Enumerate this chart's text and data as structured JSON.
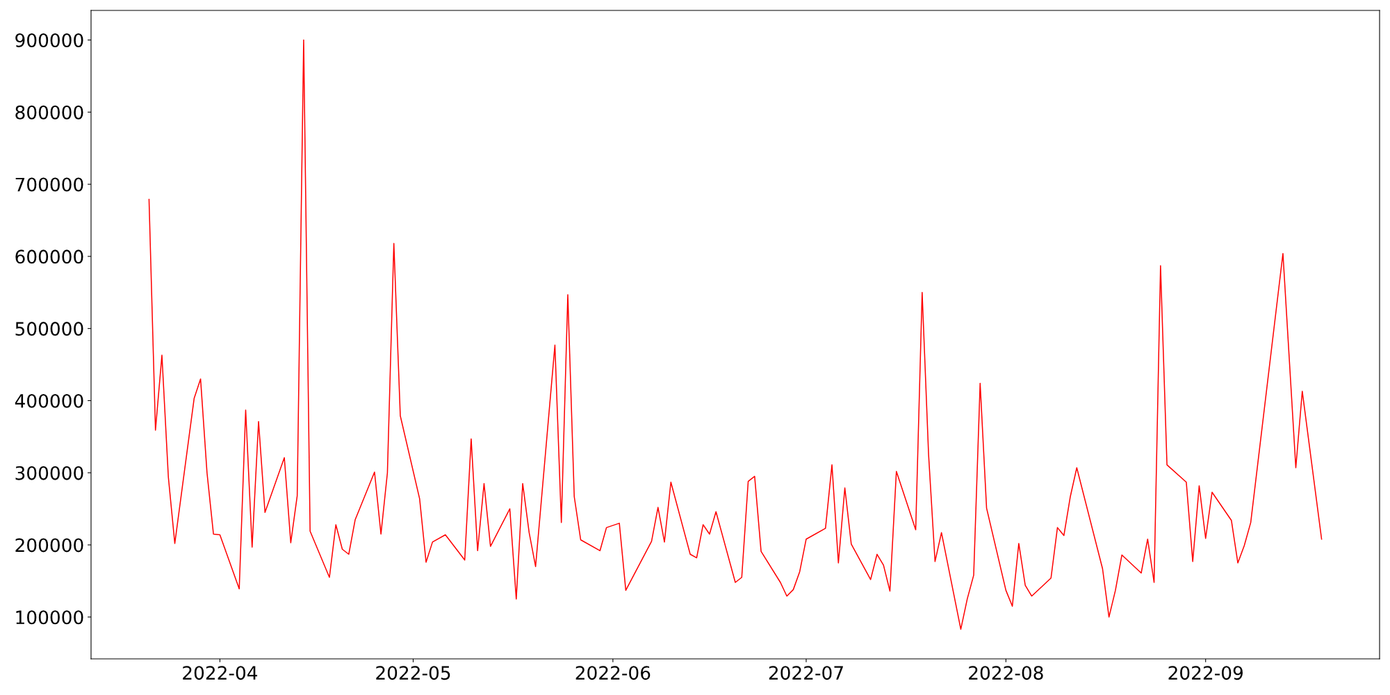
{
  "chart_data": {
    "type": "line",
    "x": [
      "2022-03-21",
      "2022-03-22",
      "2022-03-23",
      "2022-03-24",
      "2022-03-25",
      "2022-03-28",
      "2022-03-29",
      "2022-03-30",
      "2022-03-31",
      "2022-04-01",
      "2022-04-04",
      "2022-04-05",
      "2022-04-06",
      "2022-04-07",
      "2022-04-08",
      "2022-04-11",
      "2022-04-12",
      "2022-04-13",
      "2022-04-14",
      "2022-04-15",
      "2022-04-18",
      "2022-04-19",
      "2022-04-20",
      "2022-04-21",
      "2022-04-22",
      "2022-04-25",
      "2022-04-26",
      "2022-04-27",
      "2022-04-28",
      "2022-04-29",
      "2022-05-02",
      "2022-05-03",
      "2022-05-04",
      "2022-05-06",
      "2022-05-09",
      "2022-05-10",
      "2022-05-11",
      "2022-05-12",
      "2022-05-13",
      "2022-05-16",
      "2022-05-17",
      "2022-05-18",
      "2022-05-19",
      "2022-05-20",
      "2022-05-23",
      "2022-05-24",
      "2022-05-25",
      "2022-05-26",
      "2022-05-27",
      "2022-05-30",
      "2022-05-31",
      "2022-06-02",
      "2022-06-03",
      "2022-06-07",
      "2022-06-08",
      "2022-06-09",
      "2022-06-10",
      "2022-06-13",
      "2022-06-14",
      "2022-06-15",
      "2022-06-16",
      "2022-06-17",
      "2022-06-20",
      "2022-06-21",
      "2022-06-22",
      "2022-06-23",
      "2022-06-24",
      "2022-06-27",
      "2022-06-28",
      "2022-06-29",
      "2022-06-30",
      "2022-07-01",
      "2022-07-04",
      "2022-07-05",
      "2022-07-06",
      "2022-07-07",
      "2022-07-08",
      "2022-07-11",
      "2022-07-12",
      "2022-07-13",
      "2022-07-14",
      "2022-07-15",
      "2022-07-18",
      "2022-07-19",
      "2022-07-20",
      "2022-07-21",
      "2022-07-22",
      "2022-07-25",
      "2022-07-26",
      "2022-07-27",
      "2022-07-28",
      "2022-07-29",
      "2022-08-01",
      "2022-08-02",
      "2022-08-03",
      "2022-08-04",
      "2022-08-05",
      "2022-08-08",
      "2022-08-09",
      "2022-08-10",
      "2022-08-11",
      "2022-08-12",
      "2022-08-16",
      "2022-08-17",
      "2022-08-18",
      "2022-08-19",
      "2022-08-22",
      "2022-08-23",
      "2022-08-24",
      "2022-08-25",
      "2022-08-26",
      "2022-08-29",
      "2022-08-30",
      "2022-08-31",
      "2022-09-01",
      "2022-09-02",
      "2022-09-05",
      "2022-09-06",
      "2022-09-07",
      "2022-09-08",
      "2022-09-13",
      "2022-09-15",
      "2022-09-16",
      "2022-09-19"
    ],
    "series": [
      {
        "color": "#ff0000",
        "values": [
          679000,
          359000,
          463000,
          294000,
          202000,
          403000,
          430000,
          300000,
          215000,
          214000,
          139000,
          387000,
          197000,
          371000,
          245000,
          321000,
          203000,
          268000,
          900000,
          219000,
          155000,
          228000,
          194000,
          187000,
          235000,
          301000,
          215000,
          300000,
          618000,
          379000,
          264000,
          176000,
          204000,
          214000,
          179000,
          347000,
          192000,
          285000,
          198000,
          250000,
          125000,
          285000,
          217000,
          170000,
          477000,
          231000,
          547000,
          267000,
          207000,
          192000,
          224000,
          230000,
          137000,
          205000,
          252000,
          204000,
          287000,
          187000,
          182000,
          228000,
          215000,
          246000,
          148000,
          155000,
          288000,
          295000,
          191000,
          148000,
          129000,
          138000,
          163000,
          208000,
          223000,
          311000,
          175000,
          279000,
          201000,
          152000,
          187000,
          172000,
          136000,
          302000,
          221000,
          550000,
          325000,
          177000,
          217000,
          83000,
          125000,
          158000,
          424000,
          251000,
          137000,
          115000,
          202000,
          144000,
          129000,
          154000,
          224000,
          213000,
          267000,
          307000,
          167000,
          100000,
          137000,
          186000,
          161000,
          208000,
          148000,
          587000,
          311000,
          287000,
          177000,
          282000,
          209000,
          273000,
          234000,
          175000,
          199000,
          231000,
          604000,
          307000,
          413000,
          208000
        ]
      }
    ],
    "xlim": [
      "2022-03-12",
      "2022-09-28"
    ],
    "xticks": [
      {
        "value": "2022-04-01",
        "label": "2022-04"
      },
      {
        "value": "2022-05-01",
        "label": "2022-05"
      },
      {
        "value": "2022-06-01",
        "label": "2022-06"
      },
      {
        "value": "2022-07-01",
        "label": "2022-07"
      },
      {
        "value": "2022-08-01",
        "label": "2022-08"
      },
      {
        "value": "2022-09-01",
        "label": "2022-09"
      }
    ],
    "ylim": [
      42000,
      941000
    ],
    "yticks": [
      100000,
      200000,
      300000,
      400000,
      500000,
      600000,
      700000,
      800000,
      900000
    ],
    "grid": false,
    "marker": "none",
    "line_style": "solid"
  }
}
